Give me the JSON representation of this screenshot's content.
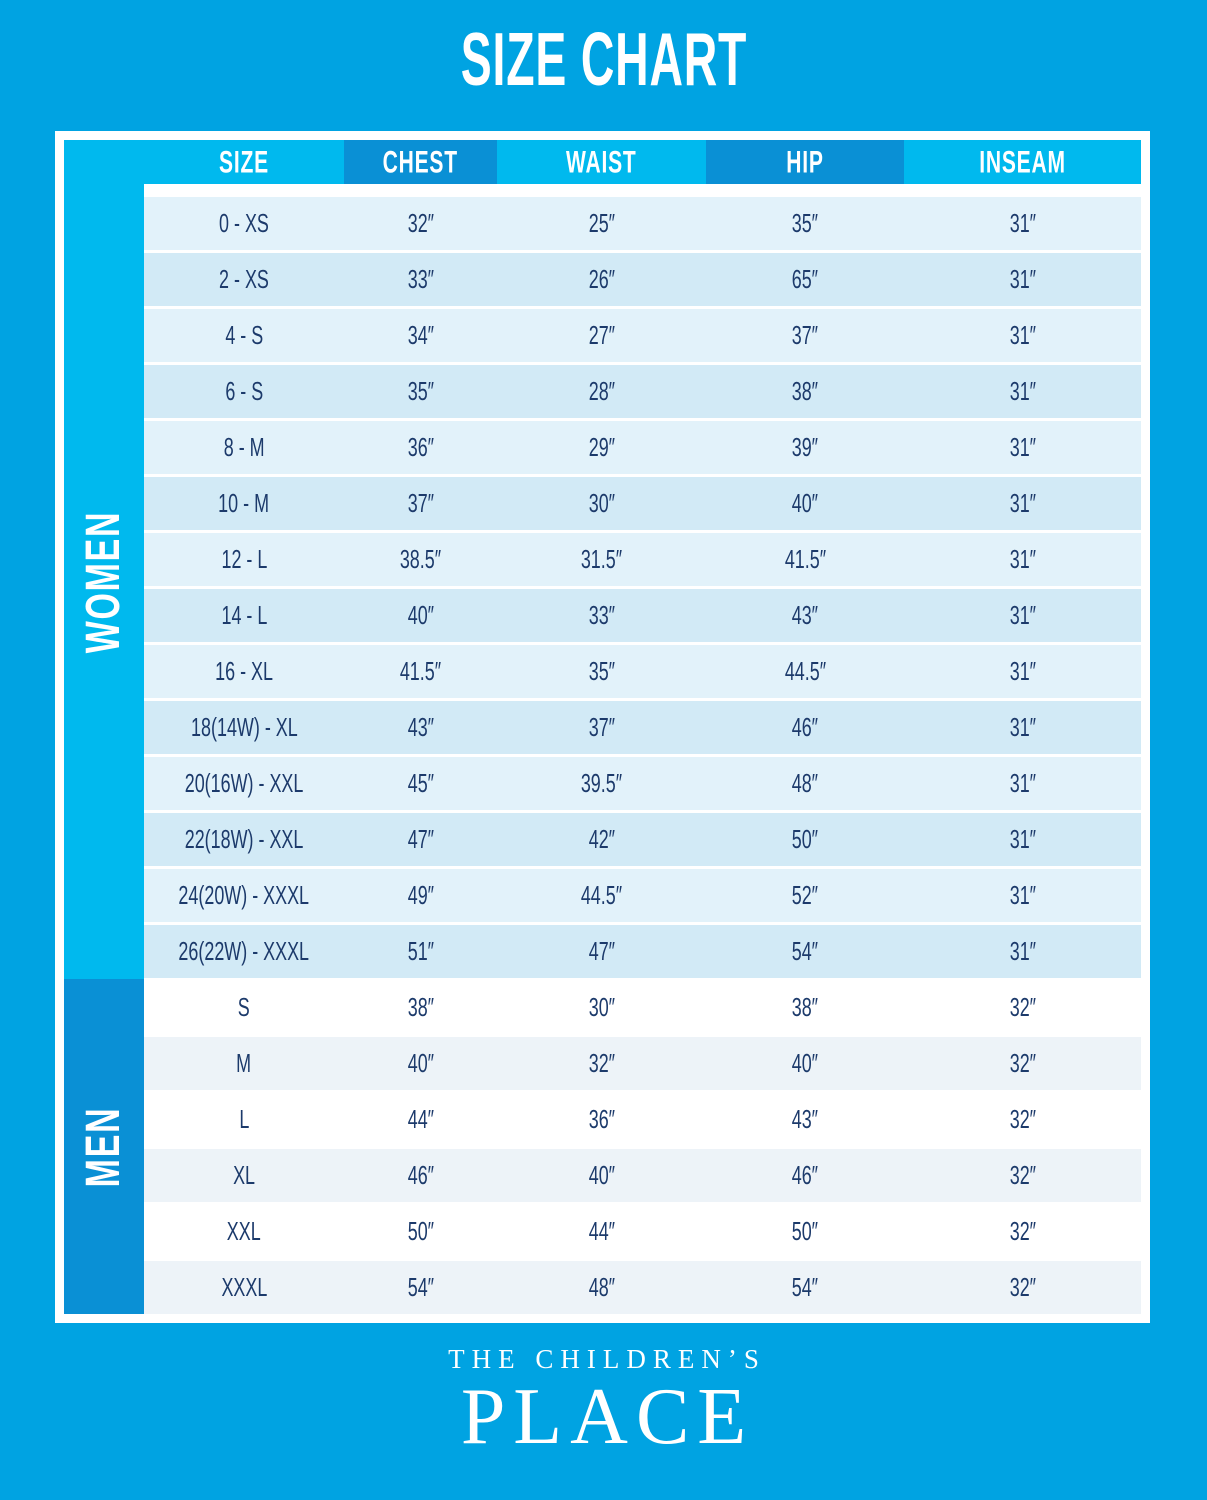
{
  "title": "SIZE CHART",
  "brand": {
    "line1": "THE CHILDREN’S",
    "line2": "PLACE"
  },
  "colors": {
    "background": "#00A3E2",
    "header_light": "#00B9EE",
    "header_dark": "#0A90D5",
    "women_row_light": "#E2F2FA",
    "women_row_dark": "#D2EAF6",
    "men_row_light": "#FFFFFF",
    "men_row_dark": "#EDF3F8",
    "table_text": "#1C3A6B",
    "frame": "#FFFFFF",
    "title_text": "#FFFFFF"
  },
  "chart_data": {
    "type": "table",
    "title": "SIZE CHART",
    "columns": [
      "SIZE",
      "CHEST",
      "WAIST",
      "HIP",
      "INSEAM"
    ],
    "sections": [
      {
        "label": "WOMEN",
        "rows": [
          [
            "0 - XS",
            "32″",
            "25″",
            "35″",
            "31″"
          ],
          [
            "2 - XS",
            "33″",
            "26″",
            "65″",
            "31″"
          ],
          [
            "4 - S",
            "34″",
            "27″",
            "37″",
            "31″"
          ],
          [
            "6 - S",
            "35″",
            "28″",
            "38″",
            "31″"
          ],
          [
            "8 - M",
            "36″",
            "29″",
            "39″",
            "31″"
          ],
          [
            "10 - M",
            "37″",
            "30″",
            "40″",
            "31″"
          ],
          [
            "12 - L",
            "38.5″",
            "31.5″",
            "41.5″",
            "31″"
          ],
          [
            "14 - L",
            "40″",
            "33″",
            "43″",
            "31″"
          ],
          [
            "16 - XL",
            "41.5″",
            "35″",
            "44.5″",
            "31″"
          ],
          [
            "18(14W) - XL",
            "43″",
            "37″",
            "46″",
            "31″"
          ],
          [
            "20(16W) - XXL",
            "45″",
            "39.5″",
            "48″",
            "31″"
          ],
          [
            "22(18W) - XXL",
            "47″",
            "42″",
            "50″",
            "31″"
          ],
          [
            "24(20W) - XXXL",
            "49″",
            "44.5″",
            "52″",
            "31″"
          ],
          [
            "26(22W) - XXXL",
            "51″",
            "47″",
            "54″",
            "31″"
          ]
        ]
      },
      {
        "label": "MEN",
        "rows": [
          [
            "S",
            "38″",
            "30″",
            "38″",
            "32″"
          ],
          [
            "M",
            "40″",
            "32″",
            "40″",
            "32″"
          ],
          [
            "L",
            "44″",
            "36″",
            "43″",
            "32″"
          ],
          [
            "XL",
            "46″",
            "40″",
            "46″",
            "32″"
          ],
          [
            "XXL",
            "50″",
            "44″",
            "50″",
            "32″"
          ],
          [
            "XXXL",
            "54″",
            "48″",
            "54″",
            "32″"
          ]
        ]
      }
    ]
  }
}
